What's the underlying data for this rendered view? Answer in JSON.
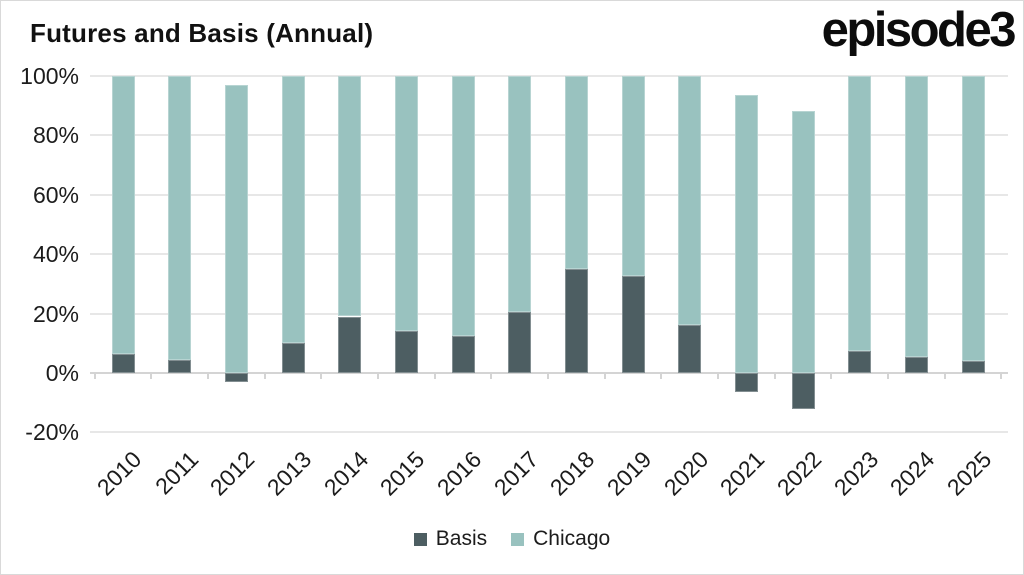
{
  "header": {
    "title": "Futures and Basis (Annual)",
    "logo": "episode3"
  },
  "colors": {
    "basis": "#4d5e62",
    "chicago": "#99c2bf",
    "gridline": "#e7e7e7",
    "axis": "#d4d4d4",
    "text": "#1c1c1c",
    "border": "#d9d9d9"
  },
  "chart_data": {
    "type": "bar",
    "stacked": true,
    "title": "Futures and Basis (Annual)",
    "categories": [
      "2010",
      "2011",
      "2012",
      "2013",
      "2014",
      "2015",
      "2016",
      "2017",
      "2018",
      "2019",
      "2020",
      "2021",
      "2022",
      "2023",
      "2024",
      "2025"
    ],
    "series": [
      {
        "name": "Basis",
        "color_key": "basis",
        "values": [
          6.5,
          4.5,
          -3,
          10,
          19,
          14,
          12.5,
          20.5,
          35,
          32.5,
          16,
          -6.5,
          -12,
          7.5,
          5.5,
          4
        ]
      },
      {
        "name": "Chicago",
        "color_key": "chicago",
        "values": [
          93.5,
          95.5,
          97,
          90,
          81,
          86,
          87.5,
          79.5,
          65,
          67.5,
          84,
          93.5,
          88,
          92.5,
          94.5,
          96
        ]
      }
    ],
    "xlabel": "",
    "ylabel": "",
    "ylim": [
      -20,
      100
    ],
    "yticks": [
      100,
      80,
      60,
      40,
      20,
      0,
      -20
    ],
    "ytick_format": "percent",
    "grid": true,
    "legend_position": "bottom"
  }
}
